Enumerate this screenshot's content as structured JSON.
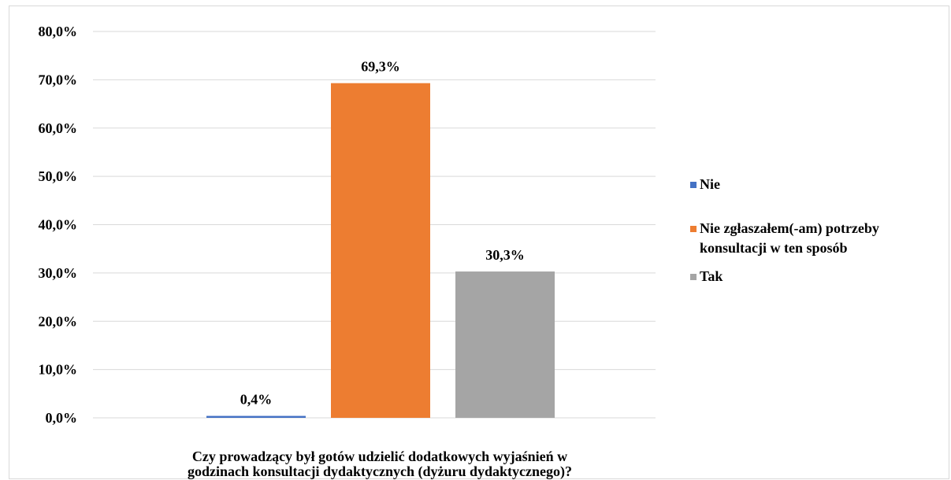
{
  "chart_data": {
    "type": "bar",
    "categories": [
      "Czy  prowadzący był gotów udzielić dodatkowych wyjaśnień w godzinach konsultacji dydaktycznych (dyżuru dydaktycznego)?"
    ],
    "category_lines": [
      "Czy  prowadzący był gotów udzielić dodatkowych wyjaśnień w",
      "godzinach konsultacji dydaktycznych (dyżuru dydaktycznego)?"
    ],
    "series": [
      {
        "name": "Nie",
        "values": [
          0.4
        ],
        "label": "0,4%",
        "color": "#4472C4"
      },
      {
        "name": "Nie zgłaszałem(-am) potrzeby konsultacji w ten sposób",
        "legend_lines": [
          "Nie zgłaszałem(-am) potrzeby",
          "konsultacji w ten sposób"
        ],
        "values": [
          69.3
        ],
        "label": "69,3%",
        "color": "#ED7D31"
      },
      {
        "name": "Tak",
        "values": [
          30.3
        ],
        "label": "30,3%",
        "color": "#A5A5A5"
      }
    ],
    "ylim": [
      0,
      80
    ],
    "yticks": [
      0,
      10,
      20,
      30,
      40,
      50,
      60,
      70,
      80
    ],
    "ytick_labels": [
      "0,0%",
      "10,0%",
      "20,0%",
      "30,0%",
      "40,0%",
      "50,0%",
      "60,0%",
      "70,0%",
      "80,0%"
    ],
    "grid": true,
    "legend_position": "right",
    "title": "",
    "xlabel": "",
    "ylabel": ""
  }
}
